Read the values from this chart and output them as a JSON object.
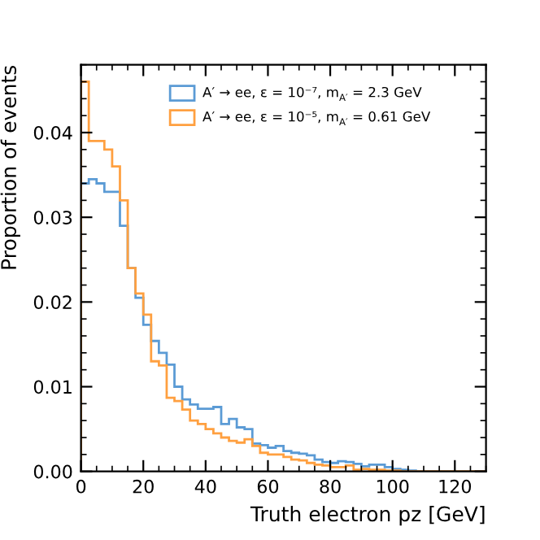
{
  "chart_data": {
    "type": "histogram",
    "xlabel": "Truth electron pz [GeV]",
    "ylabel": "Proportion of events",
    "bins": [
      0,
      2.5,
      5,
      7.5,
      10,
      12.5,
      15,
      17.5,
      20,
      22.5,
      25,
      27.5,
      30,
      32.5,
      35,
      37.5,
      40,
      42.5,
      45,
      47.5,
      50,
      52.5,
      55,
      57.5,
      60,
      62.5,
      65,
      67.5,
      70,
      72.5,
      75,
      77.5,
      80,
      82.5,
      85,
      87.5,
      90,
      92.5,
      95,
      97.5,
      100,
      102.5,
      105,
      107.5,
      110,
      112.5,
      115,
      117.5,
      120,
      122.5,
      125,
      127.5,
      130
    ],
    "series": [
      {
        "name": "A′ → ee, ε = 10⁻⁷, m$_{A′}$ = 2.3 GeV",
        "color": "#5b9bd5",
        "values": [
          0.034,
          0.0345,
          0.034,
          0.033,
          0.033,
          0.029,
          0.024,
          0.0205,
          0.0173,
          0.0154,
          0.014,
          0.0126,
          0.01,
          0.0085,
          0.0079,
          0.0074,
          0.0074,
          0.0076,
          0.0056,
          0.0062,
          0.0052,
          0.005,
          0.0033,
          0.0031,
          0.0028,
          0.003,
          0.0024,
          0.0022,
          0.0021,
          0.0019,
          0.0014,
          0.0011,
          0.001,
          0.0012,
          0.0011,
          0.0009,
          0.0006,
          0.0008,
          0.0008,
          0.0005,
          0.0003,
          0.0002,
          0.0001,
          0,
          0,
          0,
          0,
          0,
          0,
          0,
          0,
          0
        ]
      },
      {
        "name": "A′ → ee, ε = 10⁻⁵, m$_{A′}$ = 0.61 GeV",
        "color": "#ffa040",
        "values": [
          0.046,
          0.039,
          0.039,
          0.038,
          0.036,
          0.032,
          0.024,
          0.021,
          0.0185,
          0.013,
          0.0125,
          0.0087,
          0.0083,
          0.0073,
          0.006,
          0.0056,
          0.005,
          0.0045,
          0.004,
          0.0036,
          0.0034,
          0.0038,
          0.003,
          0.0022,
          0.002,
          0.002,
          0.0017,
          0.0014,
          0.0013,
          0.001,
          0.0008,
          0.0007,
          0.0005,
          0.0005,
          0.0007,
          0.0002,
          0.0003,
          0.0002,
          0.0002,
          0.0001,
          0.0001,
          0,
          0,
          0,
          0,
          0,
          0,
          0,
          0,
          0,
          0,
          0
        ]
      }
    ],
    "xlim": [
      0,
      130
    ],
    "xticks": [
      0,
      20,
      40,
      60,
      80,
      100,
      120
    ],
    "ylim": [
      0,
      0.048
    ],
    "yticks": [
      {
        "value": 0,
        "label": "0.00"
      },
      {
        "value": 0.01,
        "label": "0.01"
      },
      {
        "value": 0.02,
        "label": "0.02"
      },
      {
        "value": 0.03,
        "label": "0.03"
      },
      {
        "value": 0.04,
        "label": "0.04"
      }
    ],
    "legend": "top right",
    "grid": false
  }
}
